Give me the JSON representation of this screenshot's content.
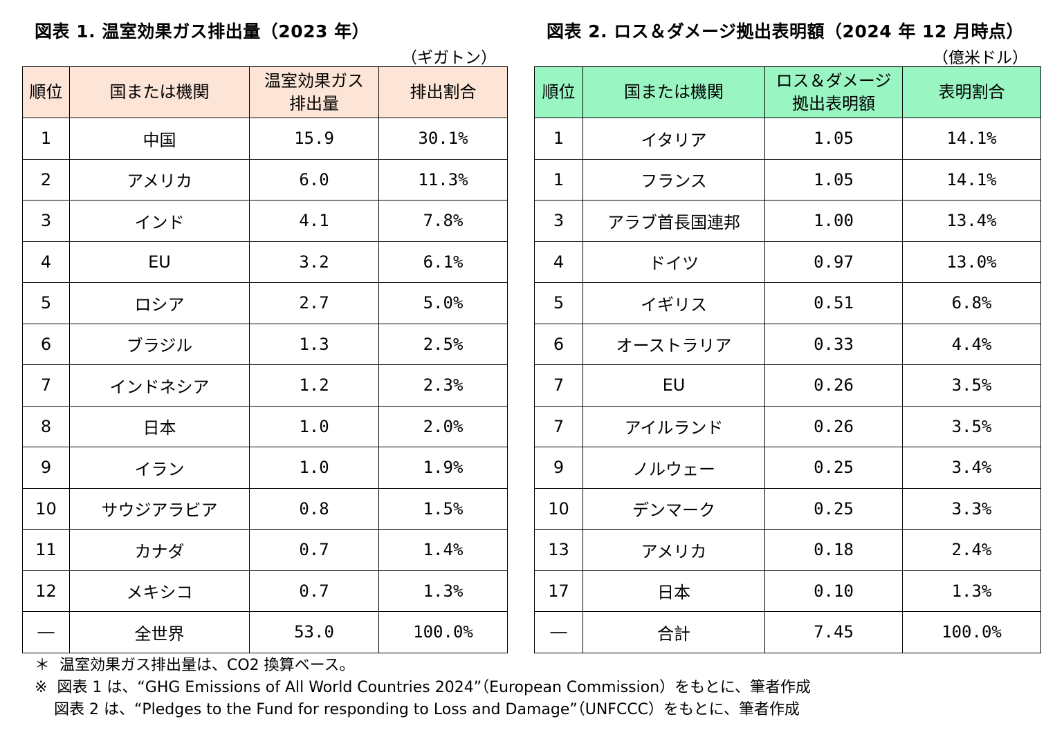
{
  "figure1": {
    "title": "図表 1.  温室効果ガス排出量（2023 年）",
    "unit": "（ギガトン）",
    "headers": {
      "rank": "順位",
      "entity": "国または機関",
      "value_line1": "温室効果ガス",
      "value_line2": "排出量",
      "share": "排出割合"
    },
    "rows": [
      {
        "rank": "1",
        "entity": "中国",
        "value": "15.9",
        "share": "30.1%"
      },
      {
        "rank": "2",
        "entity": "アメリカ",
        "value": "6.0",
        "share": "11.3%"
      },
      {
        "rank": "3",
        "entity": "インド",
        "value": "4.1",
        "share": "7.8%"
      },
      {
        "rank": "4",
        "entity": "EU",
        "value": "3.2",
        "share": "6.1%"
      },
      {
        "rank": "5",
        "entity": "ロシア",
        "value": "2.7",
        "share": "5.0%"
      },
      {
        "rank": "6",
        "entity": "ブラジル",
        "value": "1.3",
        "share": "2.5%"
      },
      {
        "rank": "7",
        "entity": "インドネシア",
        "value": "1.2",
        "share": "2.3%"
      },
      {
        "rank": "8",
        "entity": "日本",
        "value": "1.0",
        "share": "2.0%"
      },
      {
        "rank": "9",
        "entity": "イラン",
        "value": "1.0",
        "share": "1.9%"
      },
      {
        "rank": "10",
        "entity": "サウジアラビア",
        "value": "0.8",
        "share": "1.5%"
      },
      {
        "rank": "11",
        "entity": "カナダ",
        "value": "0.7",
        "share": "1.4%"
      },
      {
        "rank": "12",
        "entity": "メキシコ",
        "value": "0.7",
        "share": "1.3%"
      },
      {
        "rank": "―",
        "entity": "全世界",
        "value": "53.0",
        "share": "100.0%"
      }
    ]
  },
  "figure2": {
    "title": "図表 2.  ロス＆ダメージ拠出表明額（2024 年 12 月時点）",
    "unit": "（億米ドル）",
    "headers": {
      "rank": "順位",
      "entity": "国または機関",
      "value_line1": "ロス＆ダメージ",
      "value_line2": "拠出表明額",
      "share": "表明割合"
    },
    "rows": [
      {
        "rank": "1",
        "entity": "イタリア",
        "value": "1.05",
        "share": "14.1%"
      },
      {
        "rank": "1",
        "entity": "フランス",
        "value": "1.05",
        "share": "14.1%"
      },
      {
        "rank": "3",
        "entity": "アラブ首長国連邦",
        "value": "1.00",
        "share": "13.4%"
      },
      {
        "rank": "4",
        "entity": "ドイツ",
        "value": "0.97",
        "share": "13.0%"
      },
      {
        "rank": "5",
        "entity": "イギリス",
        "value": "0.51",
        "share": "6.8%"
      },
      {
        "rank": "6",
        "entity": "オーストラリア",
        "value": "0.33",
        "share": "4.4%"
      },
      {
        "rank": "7",
        "entity": "EU",
        "value": "0.26",
        "share": "3.5%"
      },
      {
        "rank": "7",
        "entity": "アイルランド",
        "value": "0.26",
        "share": "3.5%"
      },
      {
        "rank": "9",
        "entity": "ノルウェー",
        "value": "0.25",
        "share": "3.4%"
      },
      {
        "rank": "10",
        "entity": "デンマーク",
        "value": "0.25",
        "share": "3.3%"
      },
      {
        "rank": "13",
        "entity": "アメリカ",
        "value": "0.18",
        "share": "2.4%"
      },
      {
        "rank": "17",
        "entity": "日本",
        "value": "0.10",
        "share": "1.3%"
      },
      {
        "rank": "―",
        "entity": "合計",
        "value": "7.45",
        "share": "100.0%"
      }
    ]
  },
  "notes": [
    "＊  温室効果ガス排出量は、CO2 換算ベース。",
    "※  図表 1 は、“GHG Emissions of All World Countries 2024”（European Commission）をもとに、筆者作成",
    "    図表 2 は、“Pledges to the Fund for responding to Loss and Damage”（UNFCCC）をもとに、筆者作成"
  ]
}
